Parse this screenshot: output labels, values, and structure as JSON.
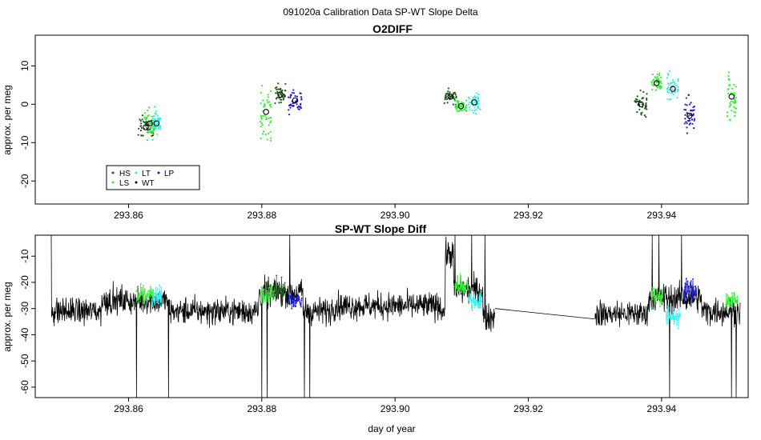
{
  "figure": {
    "suptitle": "091020a   Calibration Data SP-WT Slope Delta"
  },
  "colors": {
    "HS": "#1e5a1e",
    "LS": "#33ee33",
    "LT": "#33eeee",
    "WT": "#000000",
    "LP": "#1a1acc",
    "trace": "#000000"
  },
  "chart_data": [
    {
      "type": "scatter",
      "title": "O2DIFF",
      "xlabel": "",
      "ylabel": "approx. per meg",
      "xlim": [
        293.846,
        293.953
      ],
      "ylim": [
        -26,
        18
      ],
      "xticks": [
        293.86,
        293.88,
        293.9,
        293.92,
        293.94
      ],
      "xtick_labels": [
        "293.86",
        "293.88",
        "293.90",
        "293.92",
        "293.94"
      ],
      "yticks": [
        -20,
        -10,
        0,
        10
      ],
      "ytick_labels": [
        "-20",
        "-10",
        "0",
        "10"
      ],
      "legend": {
        "placement": "bottom-left",
        "entries": [
          {
            "label": "HS",
            "color": "#1e5a1e"
          },
          {
            "label": "LS",
            "color": "#33ee33"
          },
          {
            "label": "LT",
            "color": "#33eeee"
          },
          {
            "label": "WT",
            "color": "#000000"
          },
          {
            "label": "LP",
            "color": "#1a1acc"
          }
        ]
      },
      "groups": [
        {
          "series": "HS",
          "x": [
            293.8612,
            293.864
          ],
          "mean": -6.0,
          "sd": 2.5
        },
        {
          "series": "LS",
          "x": [
            293.8624,
            293.864
          ],
          "mean": -5.0,
          "sd": 3.5
        },
        {
          "series": "LT",
          "x": [
            293.8636,
            293.8648
          ],
          "mean": -5.0,
          "sd": 2.5
        },
        {
          "series": "LS",
          "x": [
            293.8798,
            293.8815
          ],
          "mean": -2.0,
          "sd": 6.0
        },
        {
          "series": "HS",
          "x": [
            293.882,
            293.8836
          ],
          "mean": 2.5,
          "sd": 2.5
        },
        {
          "series": "LP",
          "x": [
            293.884,
            293.886
          ],
          "mean": 1.0,
          "sd": 3.0
        },
        {
          "series": "HS",
          "x": [
            293.9074,
            293.9092
          ],
          "mean": 2.0,
          "sd": 1.5
        },
        {
          "series": "LS",
          "x": [
            293.909,
            293.9108
          ],
          "mean": -0.5,
          "sd": 1.5
        },
        {
          "series": "LT",
          "x": [
            293.911,
            293.9128
          ],
          "mean": 0.5,
          "sd": 2.5
        },
        {
          "series": "HS",
          "x": [
            293.936,
            293.9378
          ],
          "mean": 0.0,
          "sd": 3.0
        },
        {
          "series": "LS",
          "x": [
            293.9385,
            293.94
          ],
          "mean": 5.5,
          "sd": 2.0
        },
        {
          "series": "LT",
          "x": [
            293.9408,
            293.9426
          ],
          "mean": 4.0,
          "sd": 3.5
        },
        {
          "series": "LP",
          "x": [
            293.9434,
            293.945
          ],
          "mean": -3.0,
          "sd": 4.0
        },
        {
          "series": "LS",
          "x": [
            293.9498,
            293.9512
          ],
          "mean": 2.0,
          "sd": 6.0
        }
      ]
    },
    {
      "type": "line",
      "title": "SP-WT Slope Diff",
      "xlabel": "day of year",
      "ylabel": "approx. per meg",
      "xlim": [
        293.846,
        293.953
      ],
      "ylim": [
        -64,
        -2
      ],
      "xticks": [
        293.86,
        293.88,
        293.9,
        293.92,
        293.94
      ],
      "xtick_labels": [
        "293.86",
        "293.88",
        "293.90",
        "293.92",
        "293.94"
      ],
      "yticks": [
        -60,
        -50,
        -40,
        -30,
        -20,
        -10
      ],
      "ytick_labels": [
        "-60",
        "-50",
        "-40",
        "-30",
        "-20",
        "-10"
      ],
      "segments": [
        {
          "x": [
            293.8484,
            293.915
          ]
        },
        {
          "x": [
            293.93,
            293.9518
          ]
        }
      ],
      "gap": {
        "x": [
          293.915,
          293.93
        ],
        "y": [
          -30,
          -34
        ]
      },
      "overlays": [
        {
          "series": "LS",
          "x": [
            293.8612,
            293.864
          ],
          "level": -25
        },
        {
          "series": "LT",
          "x": [
            293.8636,
            293.865
          ],
          "level": -26
        },
        {
          "series": "LS",
          "x": [
            293.8798,
            293.8818
          ],
          "level": -24
        },
        {
          "series": "HS",
          "x": [
            293.8818,
            293.8836
          ],
          "level": -23
        },
        {
          "series": "LP",
          "x": [
            293.884,
            293.886
          ],
          "level": -27
        },
        {
          "series": "LS",
          "x": [
            293.909,
            293.911
          ],
          "level": -21
        },
        {
          "series": "LT",
          "x": [
            293.911,
            293.913
          ],
          "level": -27
        },
        {
          "series": "LS",
          "x": [
            293.9385,
            293.9402
          ],
          "level": -25
        },
        {
          "series": "LT",
          "x": [
            293.9406,
            293.9428
          ],
          "level": -33
        },
        {
          "series": "LP",
          "x": [
            293.9434,
            293.9452
          ],
          "level": -23
        },
        {
          "series": "LS",
          "x": [
            293.9496,
            293.9514
          ],
          "level": -27
        }
      ]
    }
  ]
}
